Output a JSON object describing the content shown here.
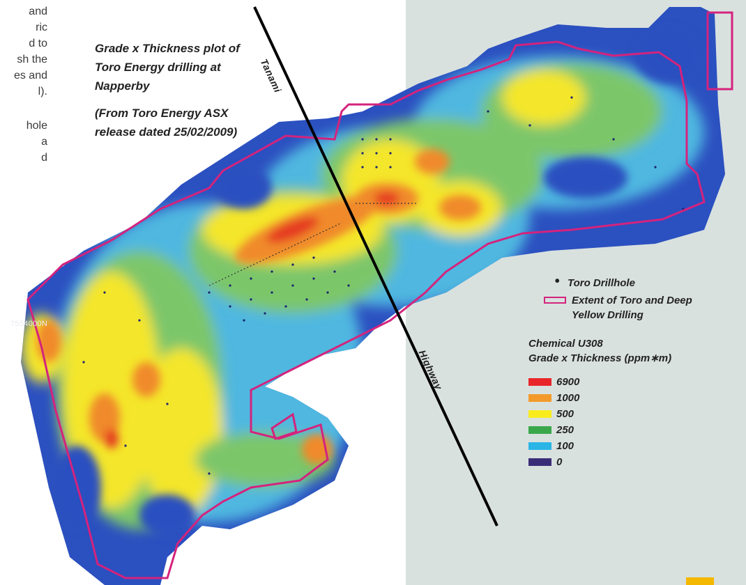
{
  "background": {
    "page": "#ffffff",
    "panel": "#d9e1df"
  },
  "left_text_lines": [
    "and",
    "ric",
    "d to",
    "sh the",
    "es and",
    "l).",
    "",
    "hole",
    "a",
    "d"
  ],
  "caption": {
    "line1": "Grade x Thickness plot of Toro Energy drilling at Napperby",
    "line2": "(From Toro Energy ASX release dated 25/02/2009)"
  },
  "road_labels": {
    "upper": "Tanami",
    "lower": "Highway"
  },
  "grid_label": "7554000N",
  "legend": {
    "drillhole": "Toro Drillhole",
    "extent": "Extent of Toro and Deep Yellow Drilling",
    "extent_color": "#d4237d",
    "scale_title_1": "Chemical U308",
    "scale_title_2": "Grade x Thickness (ppm∗m)",
    "scale": [
      {
        "label": "6900",
        "color": "#e8262a"
      },
      {
        "label": "1000",
        "color": "#f39a2a"
      },
      {
        "label": "500",
        "color": "#f9ec1c"
      },
      {
        "label": "250",
        "color": "#3aa84a"
      },
      {
        "label": "100",
        "color": "#2bb5e6"
      },
      {
        "label": "0",
        "color": "#3a2d78"
      }
    ]
  },
  "colors": {
    "accent": "#f5b800",
    "road": "#000000"
  }
}
